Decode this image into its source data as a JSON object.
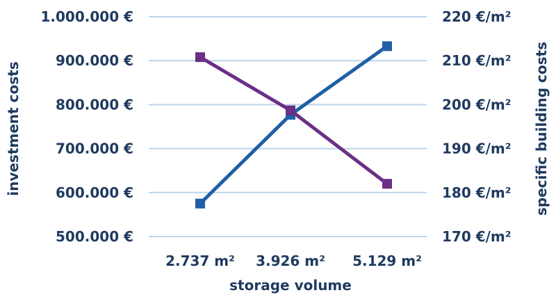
{
  "chart_data": {
    "type": "line",
    "title": "",
    "categories": [
      "2.737 m²",
      "3.926 m²",
      "5.129 m²"
    ],
    "xlabel": "storage volume",
    "ylabel": "investment costs",
    "y2label": "specific building costs",
    "ylim": [
      500000,
      1000000
    ],
    "y2lim": [
      170,
      220
    ],
    "left_ticks": [
      "500.000 €",
      "600.000 €",
      "700.000 €",
      "800.000 €",
      "900.000 €",
      "1.000.000 €"
    ],
    "right_ticks": [
      "170 €/m²",
      "180 €/m²",
      "190 €/m²",
      "200 €/m²",
      "210 €/m²",
      "220 €/m²"
    ],
    "grid": true,
    "series": [
      {
        "axis": "left",
        "color": "#1f5fa6",
        "values": [
          575000,
          777000,
          933000
        ]
      },
      {
        "axis": "right",
        "color": "#6b2f86",
        "values": [
          210.8,
          198.7,
          182
        ]
      }
    ]
  }
}
